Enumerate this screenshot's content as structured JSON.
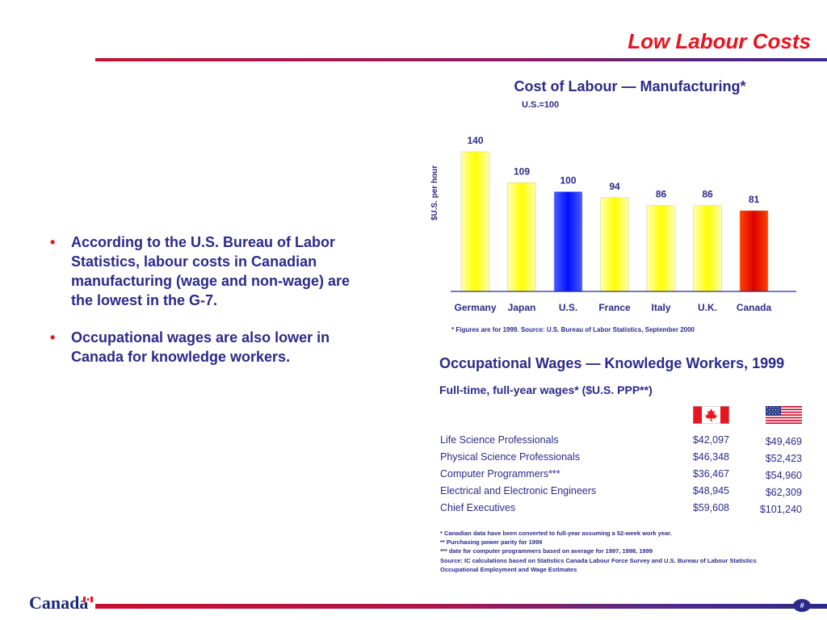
{
  "slide_title": "Low Labour Costs",
  "bullets": [
    "According to the U.S. Bureau of Labor Statistics, labour costs in Canadian manufacturing (wage and non-wage) are the lowest in the G-7.",
    "Occupational wages are also lower in Canada for knowledge workers."
  ],
  "chart_data": [
    {
      "type": "bar",
      "title": "Cost of Labour — Manufacturing*",
      "subtitle": "U.S.=100",
      "ylabel": "$U.S. per hour",
      "categories": [
        "Germany",
        "Japan",
        "U.S.",
        "France",
        "Italy",
        "U.K.",
        "Canada"
      ],
      "values": [
        140,
        109,
        100,
        94,
        86,
        86,
        81
      ],
      "bar_colors": [
        "#ffff33",
        "#ffff33",
        "#1133ff",
        "#ffff33",
        "#ffff33",
        "#ffff33",
        "#ee2200"
      ],
      "ylim": [
        0,
        150
      ],
      "grid": false,
      "note": "* Figures are for 1999.  Source:  U.S. Bureau of Labor Statistics, September 2000"
    },
    {
      "type": "table",
      "title": "Occupational Wages — Knowledge Workers, 1999",
      "subtitle": "Full-time, full-year wages* ($U.S. PPP**)",
      "columns": [
        "canada-flag-icon",
        "us-flag-icon"
      ],
      "rows": [
        {
          "occupation": "Life Science Professionals",
          "canada": "$42,097",
          "us": "$49,469"
        },
        {
          "occupation": "Physical Science Professionals",
          "canada": "$46,348",
          "us": "$52,423"
        },
        {
          "occupation": "Computer Programmers***",
          "canada": "$36,467",
          "us": "$54,960"
        },
        {
          "occupation": "Electrical and Electronic Engineers",
          "canada": "$48,945",
          "us": "$62,309"
        },
        {
          "occupation": "Chief Executives",
          "canada": "$59,608",
          "us": "$101,240"
        }
      ],
      "footnotes": [
        "* Canadian data have been converted to full-year assuming a 52-week work year.",
        "** Purchasing power parity for 1999",
        "*** date for computer programmers based on average for 1997, 1998, 1999",
        "Source:  IC calculations based on Statistics Canada Labour Force Survey and U.S. Bureau of Labour Statistics Occupational Employment and Wage Estimates"
      ]
    }
  ],
  "footer": {
    "wordmark": "Canada",
    "page_number": "#"
  },
  "colors": {
    "title_red": "#e8141e",
    "text_navy": "#2b2a8a",
    "rule_red": "#c8102e"
  }
}
